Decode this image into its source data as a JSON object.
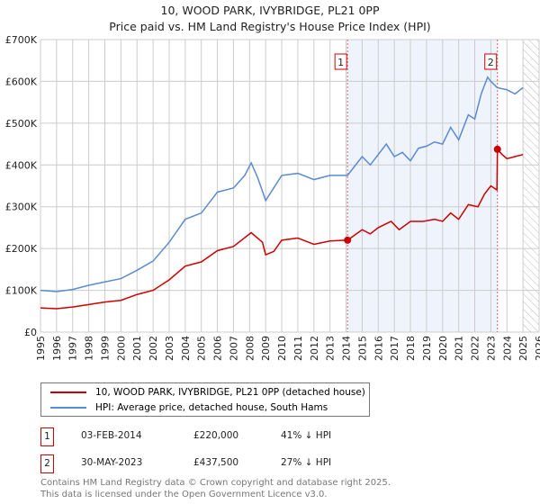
{
  "chart_data": {
    "type": "line",
    "title": "10, WOOD PARK, IVYBRIDGE, PL21 0PP",
    "subtitle": "Price paid vs. HM Land Registry's House Price Index (HPI)",
    "xlim": [
      1995,
      2026
    ],
    "ylim": [
      0,
      700000
    ],
    "x_ticks": [
      "1995",
      "1996",
      "1997",
      "1998",
      "1999",
      "2000",
      "2001",
      "2002",
      "2003",
      "2004",
      "2005",
      "2006",
      "2007",
      "2008",
      "2009",
      "2010",
      "2011",
      "2012",
      "2013",
      "2014",
      "2015",
      "2016",
      "2017",
      "2018",
      "2019",
      "2020",
      "2021",
      "2022",
      "2023",
      "2024",
      "2025",
      "2026"
    ],
    "y_ticks": [
      {
        "v": 0,
        "l": "£0"
      },
      {
        "v": 100000,
        "l": "£100K"
      },
      {
        "v": 200000,
        "l": "£200K"
      },
      {
        "v": 300000,
        "l": "£300K"
      },
      {
        "v": 400000,
        "l": "£400K"
      },
      {
        "v": 500000,
        "l": "£500K"
      },
      {
        "v": 600000,
        "l": "£600K"
      },
      {
        "v": 700000,
        "l": "£700K"
      }
    ],
    "series": [
      {
        "name": "10, WOOD PARK, IVYBRIDGE, PL21 0PP (detached house)",
        "color": "#cc0000",
        "points": [
          [
            1995,
            58
          ],
          [
            1996,
            56
          ],
          [
            1997,
            60
          ],
          [
            1998,
            66
          ],
          [
            1999,
            72
          ],
          [
            2000,
            76
          ],
          [
            2001,
            90
          ],
          [
            2002,
            100
          ],
          [
            2003,
            125
          ],
          [
            2004,
            158
          ],
          [
            2005,
            168
          ],
          [
            2006,
            195
          ],
          [
            2007,
            205
          ],
          [
            2008.1,
            238
          ],
          [
            2008.8,
            215
          ],
          [
            2009.0,
            185
          ],
          [
            2009.5,
            193
          ],
          [
            2010,
            220
          ],
          [
            2011,
            225
          ],
          [
            2012,
            210
          ],
          [
            2013,
            218
          ],
          [
            2014.09,
            220
          ],
          [
            2015,
            245
          ],
          [
            2015.5,
            235
          ],
          [
            2016,
            250
          ],
          [
            2016.8,
            265
          ],
          [
            2017.3,
            245
          ],
          [
            2018,
            265
          ],
          [
            2018.8,
            265
          ],
          [
            2019.5,
            270
          ],
          [
            2020,
            265
          ],
          [
            2020.5,
            285
          ],
          [
            2021,
            270
          ],
          [
            2021.6,
            305
          ],
          [
            2022.2,
            300
          ],
          [
            2022.6,
            330
          ],
          [
            2023.0,
            350
          ],
          [
            2023.38,
            340
          ],
          [
            2023.41,
            437.5
          ],
          [
            2023.7,
            425
          ],
          [
            2024,
            415
          ],
          [
            2024.5,
            420
          ],
          [
            2025,
            425
          ]
        ]
      },
      {
        "name": "HPI: Average price, detached house, South Hams",
        "color": "#5b8bd0",
        "points": [
          [
            1995,
            100
          ],
          [
            1996,
            97
          ],
          [
            1997,
            102
          ],
          [
            1998,
            112
          ],
          [
            1999,
            120
          ],
          [
            2000,
            128
          ],
          [
            2001,
            148
          ],
          [
            2002,
            170
          ],
          [
            2003,
            215
          ],
          [
            2004,
            270
          ],
          [
            2005,
            285
          ],
          [
            2006,
            335
          ],
          [
            2007,
            345
          ],
          [
            2007.7,
            375
          ],
          [
            2008.1,
            405
          ],
          [
            2008.5,
            370
          ],
          [
            2009.0,
            315
          ],
          [
            2009.5,
            345
          ],
          [
            2010,
            375
          ],
          [
            2011,
            380
          ],
          [
            2012,
            365
          ],
          [
            2013,
            375
          ],
          [
            2014.09,
            375
          ],
          [
            2015,
            420
          ],
          [
            2015.5,
            400
          ],
          [
            2016,
            425
          ],
          [
            2016.5,
            450
          ],
          [
            2017,
            420
          ],
          [
            2017.5,
            430
          ],
          [
            2018,
            410
          ],
          [
            2018.5,
            440
          ],
          [
            2019,
            445
          ],
          [
            2019.5,
            455
          ],
          [
            2020,
            450
          ],
          [
            2020.5,
            490
          ],
          [
            2021,
            460
          ],
          [
            2021.6,
            520
          ],
          [
            2022,
            510
          ],
          [
            2022.4,
            570
          ],
          [
            2022.8,
            610
          ],
          [
            2023.0,
            600
          ],
          [
            2023.4,
            585
          ],
          [
            2024,
            580
          ],
          [
            2024.5,
            570
          ],
          [
            2025,
            585
          ]
        ]
      }
    ],
    "value_unit": "£K",
    "annotations": [
      {
        "label": "1",
        "x": 2014.09,
        "y": 220
      },
      {
        "label": "2",
        "x": 2023.41,
        "y": 437.5
      }
    ],
    "shaded_range": [
      2014.09,
      2023.41
    ],
    "forecast_hatch_from": 2025
  },
  "sales": [
    {
      "num": "1",
      "date": "03-FEB-2014",
      "price": "£220,000",
      "hpi": "41% ↓ HPI"
    },
    {
      "num": "2",
      "date": "30-MAY-2023",
      "price": "£437,500",
      "hpi": "27% ↓ HPI"
    }
  ],
  "footer": [
    "Contains HM Land Registry data © Crown copyright and database right 2025.",
    "This data is licensed under the Open Government Licence v3.0."
  ]
}
